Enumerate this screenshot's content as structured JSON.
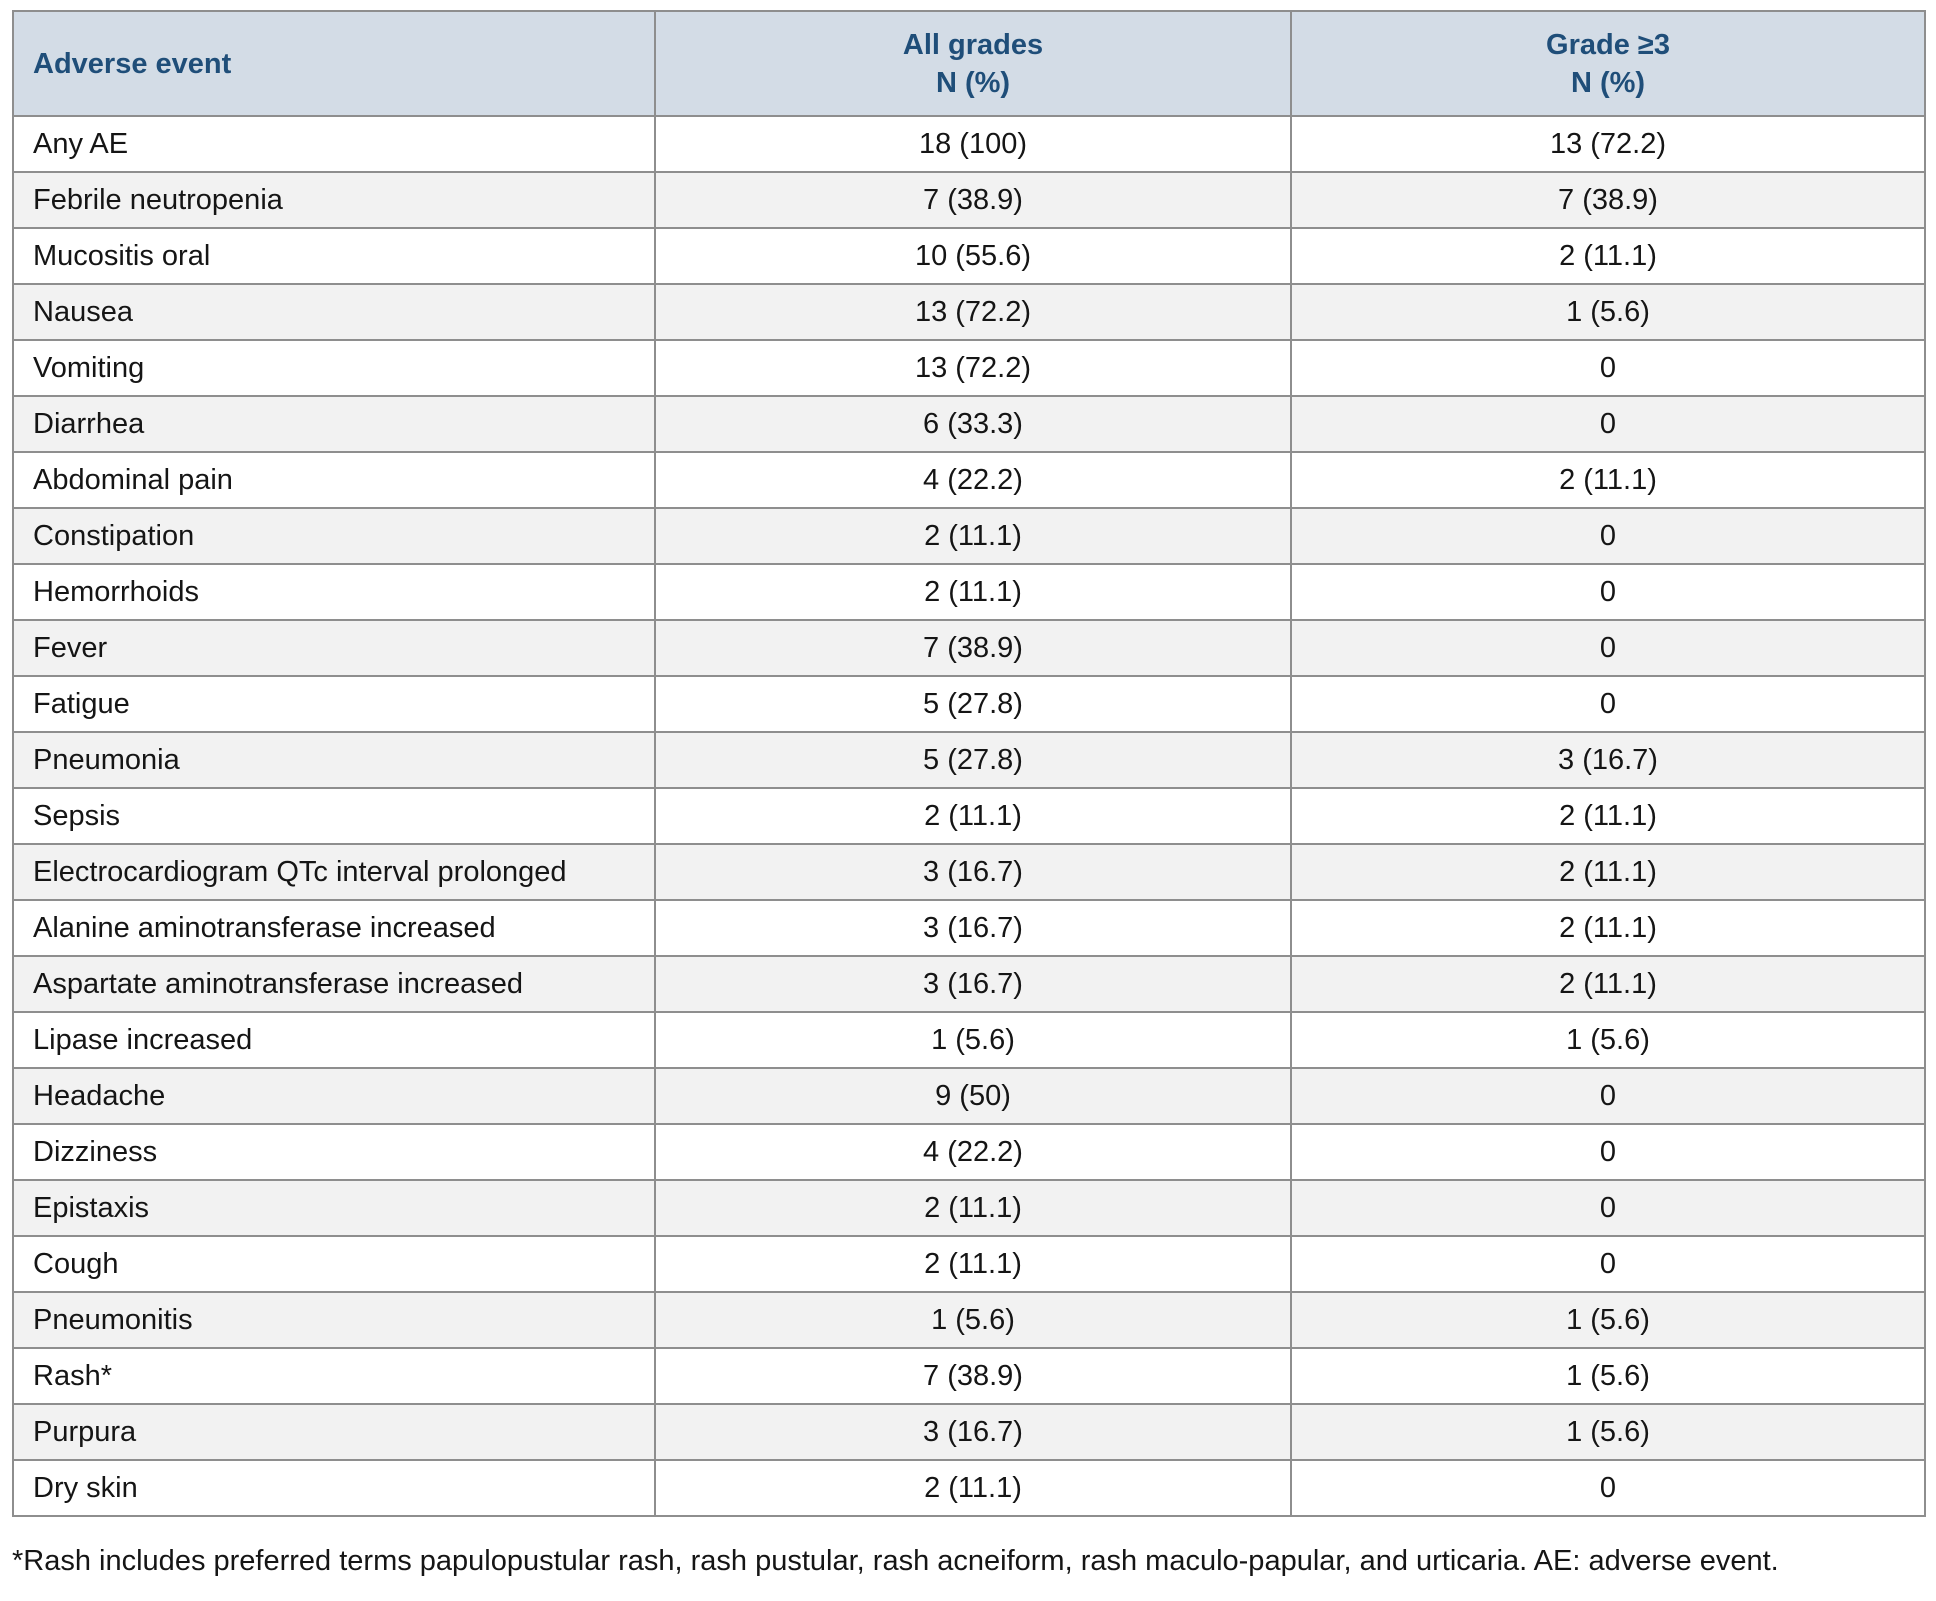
{
  "table": {
    "header": {
      "adverse_event": "Adverse event",
      "all_grades_line1": "All grades",
      "all_grades_line2": "N (%)",
      "grade3_line1": "Grade ≥3",
      "grade3_line2": "N (%)"
    },
    "rows": [
      {
        "event": "Any AE",
        "all_grades": "18 (100)",
        "grade3": "13 (72.2)"
      },
      {
        "event": "Febrile neutropenia",
        "all_grades": "7 (38.9)",
        "grade3": "7 (38.9)"
      },
      {
        "event": "Mucositis oral",
        "all_grades": "10 (55.6)",
        "grade3": "2 (11.1)"
      },
      {
        "event": "Nausea",
        "all_grades": "13 (72.2)",
        "grade3": "1 (5.6)"
      },
      {
        "event": "Vomiting",
        "all_grades": "13 (72.2)",
        "grade3": "0"
      },
      {
        "event": "Diarrhea",
        "all_grades": "6 (33.3)",
        "grade3": "0"
      },
      {
        "event": "Abdominal pain",
        "all_grades": "4 (22.2)",
        "grade3": "2 (11.1)"
      },
      {
        "event": "Constipation",
        "all_grades": "2 (11.1)",
        "grade3": "0"
      },
      {
        "event": "Hemorrhoids",
        "all_grades": "2 (11.1)",
        "grade3": "0"
      },
      {
        "event": "Fever",
        "all_grades": "7 (38.9)",
        "grade3": "0"
      },
      {
        "event": "Fatigue",
        "all_grades": "5 (27.8)",
        "grade3": "0"
      },
      {
        "event": "Pneumonia",
        "all_grades": "5 (27.8)",
        "grade3": "3 (16.7)"
      },
      {
        "event": "Sepsis",
        "all_grades": "2 (11.1)",
        "grade3": "2 (11.1)"
      },
      {
        "event": "Electrocardiogram QTc interval prolonged",
        "all_grades": "3 (16.7)",
        "grade3": "2 (11.1)"
      },
      {
        "event": "Alanine aminotransferase increased",
        "all_grades": "3 (16.7)",
        "grade3": "2 (11.1)"
      },
      {
        "event": "Aspartate aminotransferase increased",
        "all_grades": "3 (16.7)",
        "grade3": "2 (11.1)"
      },
      {
        "event": "Lipase increased",
        "all_grades": "1 (5.6)",
        "grade3": "1 (5.6)"
      },
      {
        "event": "Headache",
        "all_grades": "9 (50)",
        "grade3": "0"
      },
      {
        "event": "Dizziness",
        "all_grades": "4 (22.2)",
        "grade3": "0"
      },
      {
        "event": "Epistaxis",
        "all_grades": "2 (11.1)",
        "grade3": "0"
      },
      {
        "event": "Cough",
        "all_grades": "2 (11.1)",
        "grade3": "0"
      },
      {
        "event": "Pneumonitis",
        "all_grades": "1 (5.6)",
        "grade3": "1 (5.6)"
      },
      {
        "event": "Rash*",
        "all_grades": "7 (38.9)",
        "grade3": "1 (5.6)"
      },
      {
        "event": "Purpura",
        "all_grades": "3 (16.7)",
        "grade3": "1 (5.6)"
      },
      {
        "event": "Dry skin",
        "all_grades": "2 (11.1)",
        "grade3": "0"
      }
    ]
  },
  "footnote": "*Rash includes preferred terms papulopustular rash, rash pustular, rash acneiform, rash maculo-papular, and urticaria. AE: adverse event.",
  "colors": {
    "header_bg": "#d3dce6",
    "header_text": "#1f4e79",
    "alt_row_bg": "#f2f2f2",
    "border": "#8e8e8e"
  }
}
